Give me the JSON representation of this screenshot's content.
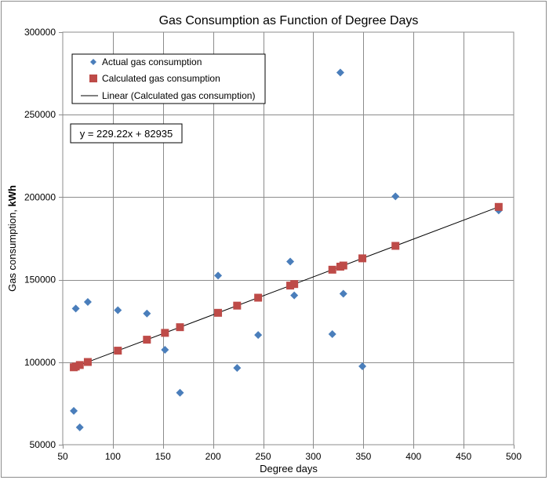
{
  "chart_data": {
    "type": "scatter",
    "title": "Gas Consumption as Function of Degree Days",
    "xlabel": "Degree days",
    "ylabel_prefix": "Gas consumption, ",
    "ylabel_unit": "kWh",
    "xlim": [
      50,
      500
    ],
    "ylim": [
      50000,
      300000
    ],
    "xticks": [
      50,
      100,
      150,
      200,
      250,
      300,
      350,
      400,
      450,
      500
    ],
    "yticks": [
      50000,
      100000,
      150000,
      200000,
      250000,
      300000
    ],
    "grid": true,
    "legend_position": "top-left",
    "equation": "y = 229.22x + 82935",
    "series": [
      {
        "name": "Actual gas consumption",
        "marker": "diamond",
        "color": "#4a7ebb",
        "x": [
          61,
          63,
          67,
          75,
          105,
          134,
          152,
          167,
          205,
          224,
          245,
          277,
          281,
          319,
          327,
          330,
          349,
          382,
          485
        ],
        "y": [
          70500,
          132500,
          60500,
          136500,
          131500,
          129500,
          107500,
          81500,
          152500,
          96500,
          116500,
          161000,
          140500,
          117000,
          275500,
          141500,
          97500,
          200500,
          192000
        ]
      },
      {
        "name": "Calculated gas consumption",
        "marker": "square",
        "color": "#be4b48",
        "x": [
          61,
          63,
          67,
          75,
          105,
          134,
          152,
          167,
          205,
          224,
          245,
          277,
          281,
          319,
          327,
          330,
          349,
          382,
          485
        ],
        "y": [
          96917,
          97375,
          98292,
          100127,
          106998,
          113647,
          117777,
          121213,
          129926,
          134282,
          139094,
          146432,
          147348,
          156059,
          157894,
          158581,
          162935,
          170501,
          194110
        ]
      },
      {
        "name": "Linear (Calculated gas consumption)",
        "marker": "line",
        "color": "#000000",
        "slope": 229.22,
        "intercept": 82935,
        "x_range": [
          61,
          485
        ]
      }
    ]
  }
}
